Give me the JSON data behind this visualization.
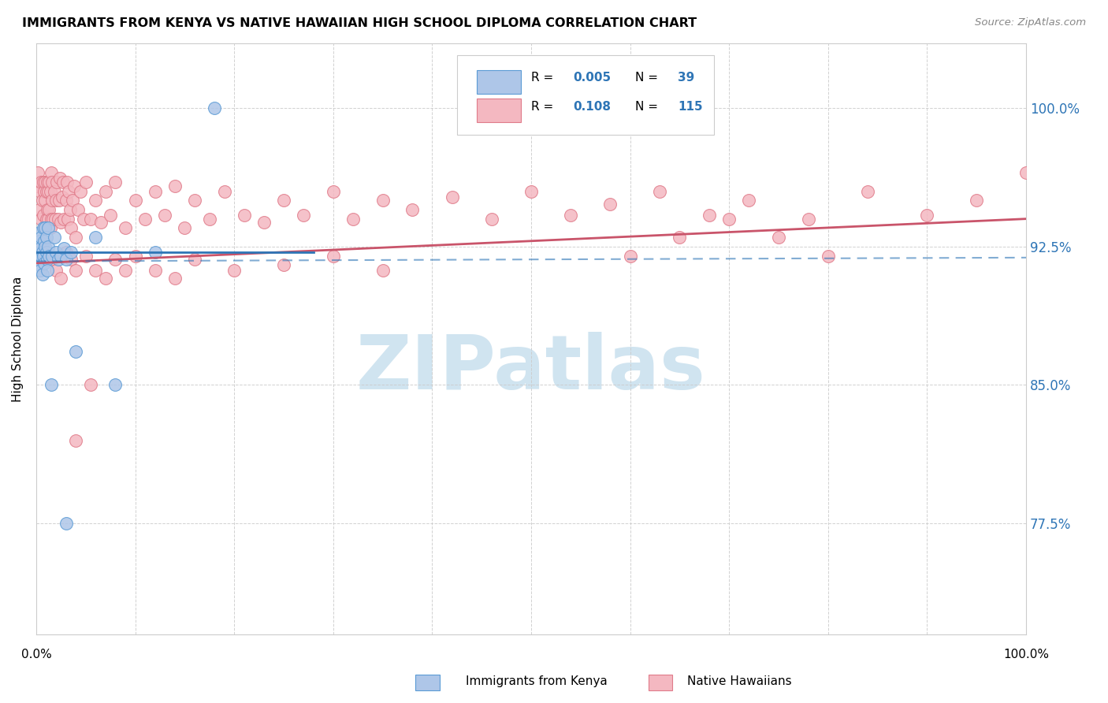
{
  "title": "IMMIGRANTS FROM KENYA VS NATIVE HAWAIIAN HIGH SCHOOL DIPLOMA CORRELATION CHART",
  "source": "Source: ZipAtlas.com",
  "ylabel": "High School Diploma",
  "legend_r1": "0.005",
  "legend_n1": "39",
  "legend_r2": "0.108",
  "legend_n2": "115",
  "kenya_fill": "#aec6e8",
  "kenya_edge": "#5b9bd5",
  "hawaii_fill": "#f4b8c1",
  "hawaii_edge": "#e07b8a",
  "kenya_line_color": "#2e75b6",
  "hawaii_line_color": "#c9546a",
  "ytick_color": "#2e75b6",
  "ytick_vals": [
    0.775,
    0.85,
    0.925,
    1.0
  ],
  "ytick_labels": [
    "77.5%",
    "85.0%",
    "92.5%",
    "100.0%"
  ],
  "xmin": 0.0,
  "xmax": 1.0,
  "ymin": 0.715,
  "ymax": 1.035,
  "watermark_text": "ZIPatlas",
  "watermark_color": "#d0e4f0",
  "background_color": "#ffffff",
  "grid_color": "#cccccc",
  "kenya_x": [
    0.001,
    0.002,
    0.002,
    0.003,
    0.003,
    0.004,
    0.004,
    0.005,
    0.005,
    0.006,
    0.006,
    0.007,
    0.007,
    0.008,
    0.008,
    0.009,
    0.009,
    0.01,
    0.01,
    0.011,
    0.011,
    0.012,
    0.012,
    0.013,
    0.015,
    0.016,
    0.018,
    0.02,
    0.022,
    0.025,
    0.028,
    0.03,
    0.035,
    0.04,
    0.06,
    0.08,
    0.12,
    0.03,
    0.18
  ],
  "kenya_y": [
    0.925,
    0.932,
    0.918,
    0.928,
    0.915,
    0.924,
    0.912,
    0.93,
    0.92,
    0.922,
    0.91,
    0.935,
    0.92,
    0.928,
    0.916,
    0.925,
    0.935,
    0.922,
    0.93,
    0.918,
    0.912,
    0.925,
    0.935,
    0.92,
    0.85,
    0.92,
    0.93,
    0.922,
    0.918,
    0.92,
    0.924,
    0.918,
    0.922,
    0.868,
    0.93,
    0.85,
    0.922,
    0.775,
    1.0
  ],
  "hawaii_x": [
    0.001,
    0.002,
    0.003,
    0.004,
    0.005,
    0.005,
    0.006,
    0.007,
    0.007,
    0.008,
    0.008,
    0.009,
    0.009,
    0.01,
    0.01,
    0.011,
    0.011,
    0.012,
    0.012,
    0.013,
    0.013,
    0.014,
    0.014,
    0.015,
    0.015,
    0.016,
    0.016,
    0.017,
    0.018,
    0.019,
    0.02,
    0.021,
    0.022,
    0.023,
    0.024,
    0.025,
    0.026,
    0.027,
    0.028,
    0.03,
    0.031,
    0.032,
    0.033,
    0.034,
    0.035,
    0.037,
    0.038,
    0.04,
    0.042,
    0.045,
    0.048,
    0.05,
    0.055,
    0.06,
    0.065,
    0.07,
    0.075,
    0.08,
    0.09,
    0.1,
    0.11,
    0.12,
    0.13,
    0.14,
    0.15,
    0.16,
    0.175,
    0.19,
    0.21,
    0.23,
    0.25,
    0.27,
    0.3,
    0.32,
    0.35,
    0.38,
    0.42,
    0.46,
    0.5,
    0.54,
    0.58,
    0.63,
    0.68,
    0.72,
    0.78,
    0.84,
    0.9,
    0.95,
    1.0,
    0.015,
    0.02,
    0.025,
    0.03,
    0.035,
    0.04,
    0.05,
    0.06,
    0.07,
    0.08,
    0.09,
    0.1,
    0.12,
    0.14,
    0.16,
    0.2,
    0.25,
    0.3,
    0.35,
    0.6,
    0.65,
    0.7,
    0.75,
    0.8,
    0.04,
    0.055
  ],
  "hawaii_y": [
    0.958,
    0.965,
    0.945,
    0.955,
    0.96,
    0.94,
    0.95,
    0.96,
    0.942,
    0.955,
    0.935,
    0.95,
    0.96,
    0.94,
    0.955,
    0.945,
    0.96,
    0.94,
    0.955,
    0.945,
    0.96,
    0.935,
    0.955,
    0.965,
    0.94,
    0.95,
    0.96,
    0.94,
    0.955,
    0.94,
    0.95,
    0.96,
    0.94,
    0.95,
    0.962,
    0.938,
    0.952,
    0.96,
    0.94,
    0.95,
    0.96,
    0.94,
    0.955,
    0.945,
    0.935,
    0.95,
    0.958,
    0.93,
    0.945,
    0.955,
    0.94,
    0.96,
    0.94,
    0.95,
    0.938,
    0.955,
    0.942,
    0.96,
    0.935,
    0.95,
    0.94,
    0.955,
    0.942,
    0.958,
    0.935,
    0.95,
    0.94,
    0.955,
    0.942,
    0.938,
    0.95,
    0.942,
    0.955,
    0.94,
    0.95,
    0.945,
    0.952,
    0.94,
    0.955,
    0.942,
    0.948,
    0.955,
    0.942,
    0.95,
    0.94,
    0.955,
    0.942,
    0.95,
    0.965,
    0.918,
    0.912,
    0.908,
    0.922,
    0.918,
    0.912,
    0.92,
    0.912,
    0.908,
    0.918,
    0.912,
    0.92,
    0.912,
    0.908,
    0.918,
    0.912,
    0.915,
    0.92,
    0.912,
    0.92,
    0.93,
    0.94,
    0.93,
    0.92,
    0.82,
    0.85
  ]
}
